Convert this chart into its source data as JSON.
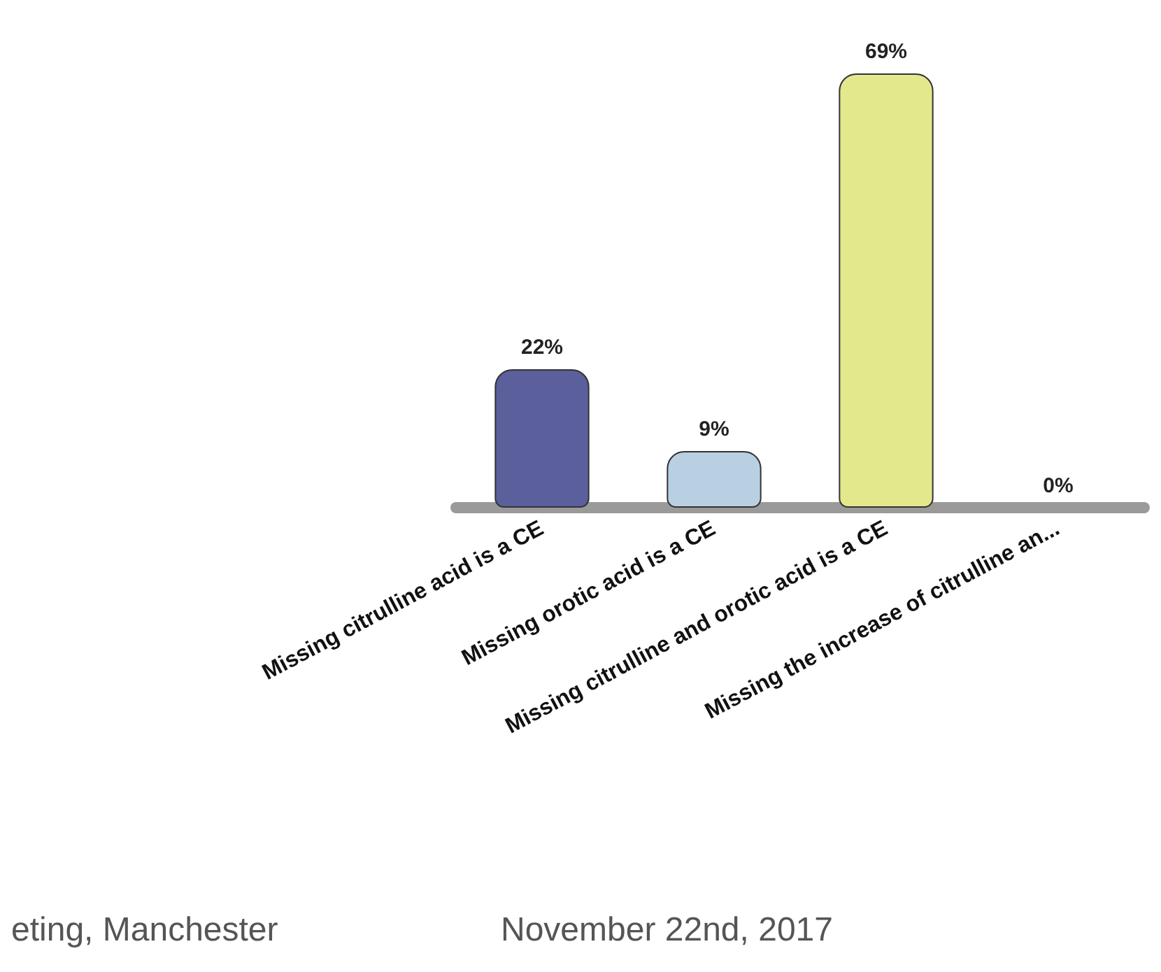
{
  "chart_data": {
    "type": "bar",
    "categories": [
      "Missing citrulline acid is a CE",
      "Missing orotic acid is a CE",
      "Missing citrulline and orotic acid is a CE",
      "Missing the increase of citrulline an..."
    ],
    "values": [
      22,
      9,
      69,
      0
    ],
    "colors": [
      "#5b5f9c",
      "#b9d0e3",
      "#e3e88c",
      "#e9c447"
    ],
    "value_labels": [
      "22%",
      "9%",
      "69%",
      "0%"
    ],
    "annotations": [
      "eting, Manchester",
      "November 22nd, 2017"
    ]
  }
}
